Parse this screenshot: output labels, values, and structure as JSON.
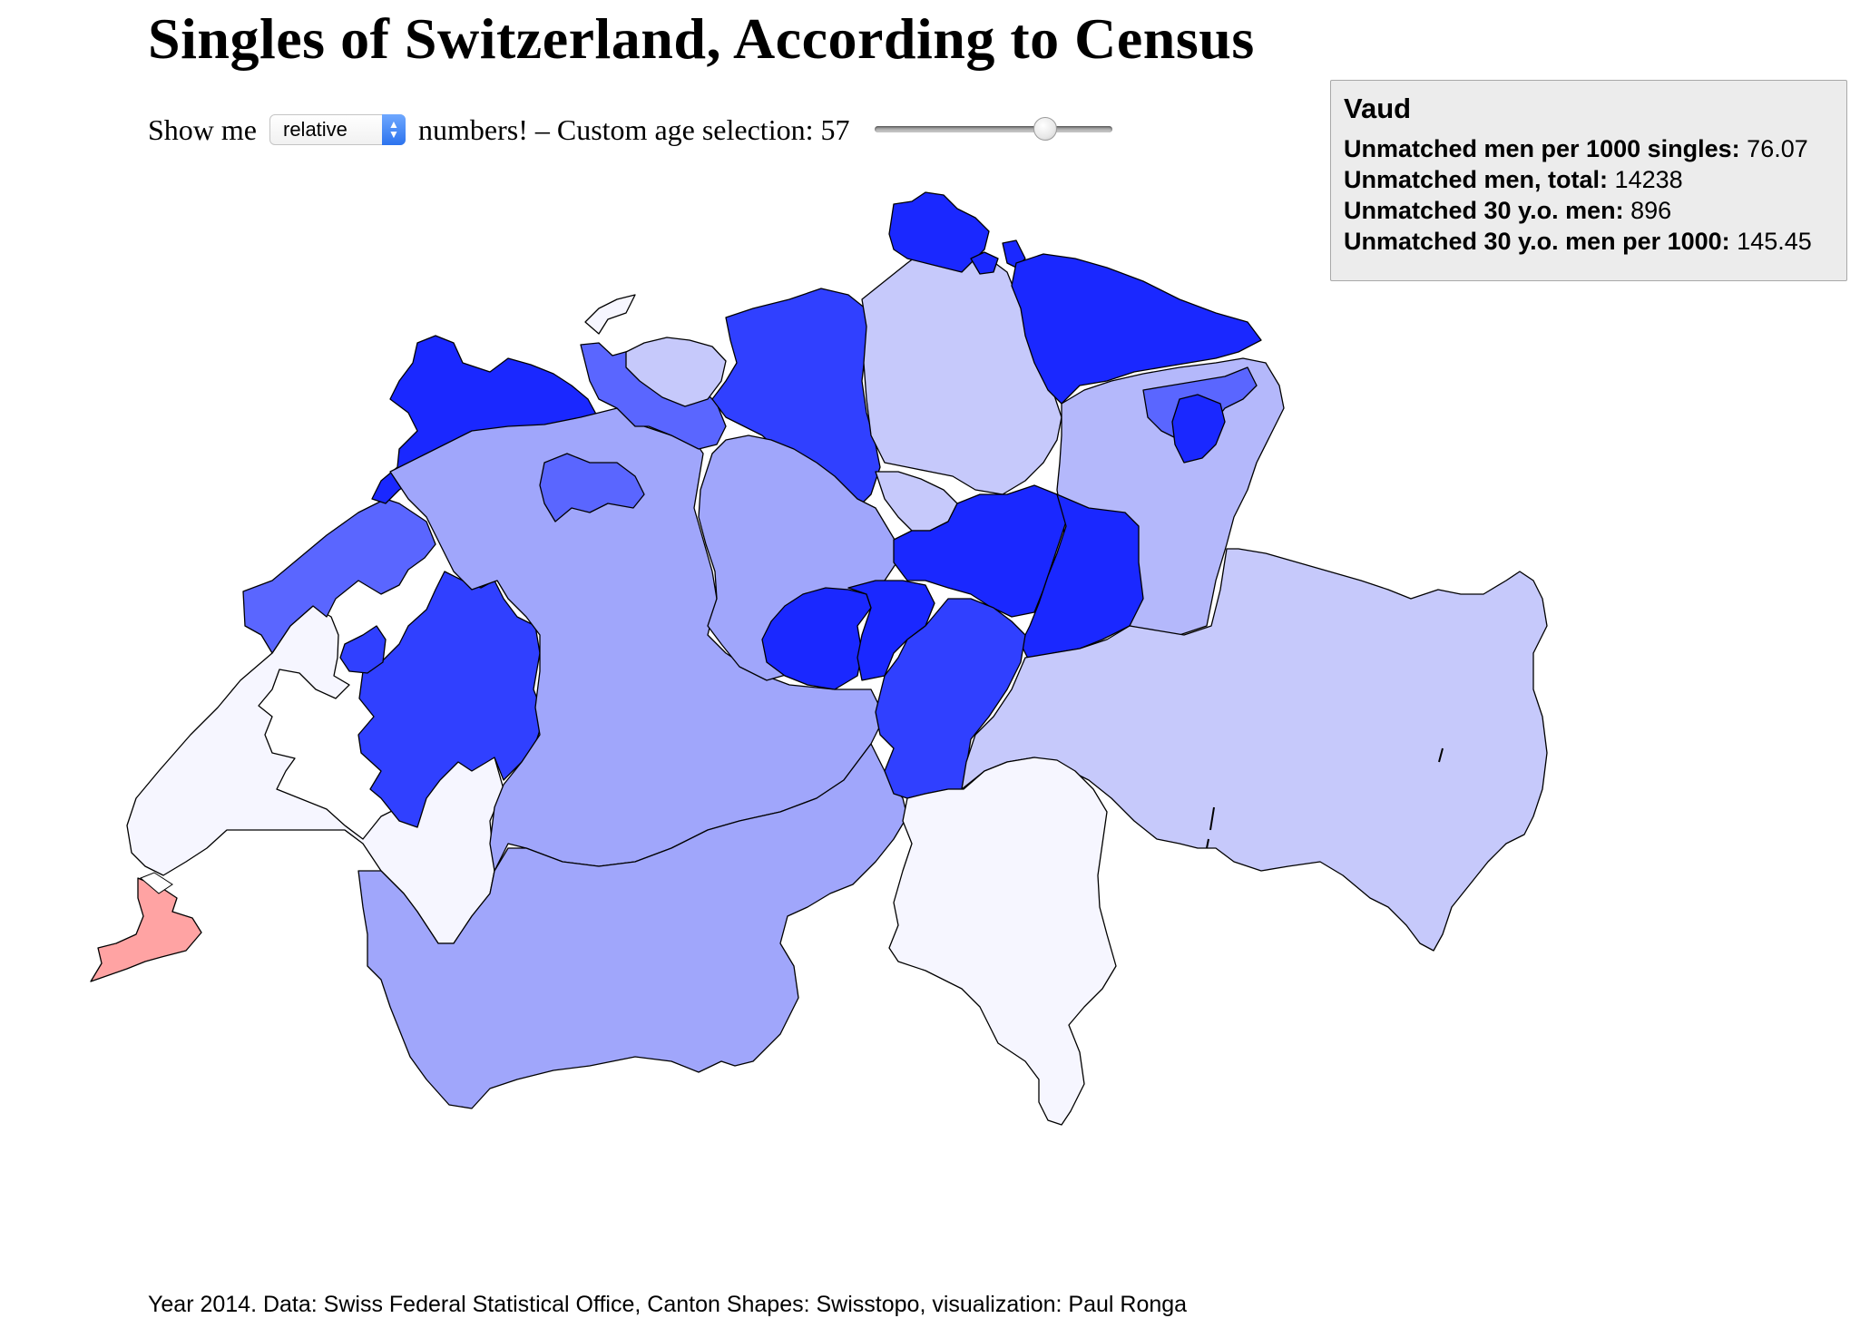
{
  "title": "Singles of Switzerland, According to Census",
  "controls": {
    "prefix": "Show me",
    "select_value": "relative",
    "middle": "numbers! – Custom age selection: 57",
    "age_value": 57
  },
  "tooltip": {
    "title": "Vaud",
    "rows": [
      {
        "label": "Unmatched men per 1000 singles:",
        "value": "76.07"
      },
      {
        "label": "Unmatched men, total:",
        "value": "14238"
      },
      {
        "label": "Unmatched 30 y.o. men:",
        "value": "896"
      },
      {
        "label": "Unmatched 30 y.o. men per 1000:",
        "value": "145.45"
      }
    ]
  },
  "footer": "Year 2014. Data: Swiss Federal Statistical Office, Canton Shapes: Swisstopo, visualization: Paul Ronga",
  "colors": {
    "very_high": "#1a28ff",
    "high": "#3040ff",
    "mid_high": "#5a66ff",
    "mid": "#a0a6fb",
    "mid_low": "#b4b8fb",
    "low": "#c6c9fb",
    "very_low": "#f6f6ff",
    "negative": "#ffa3a3",
    "border": "#000000"
  }
}
